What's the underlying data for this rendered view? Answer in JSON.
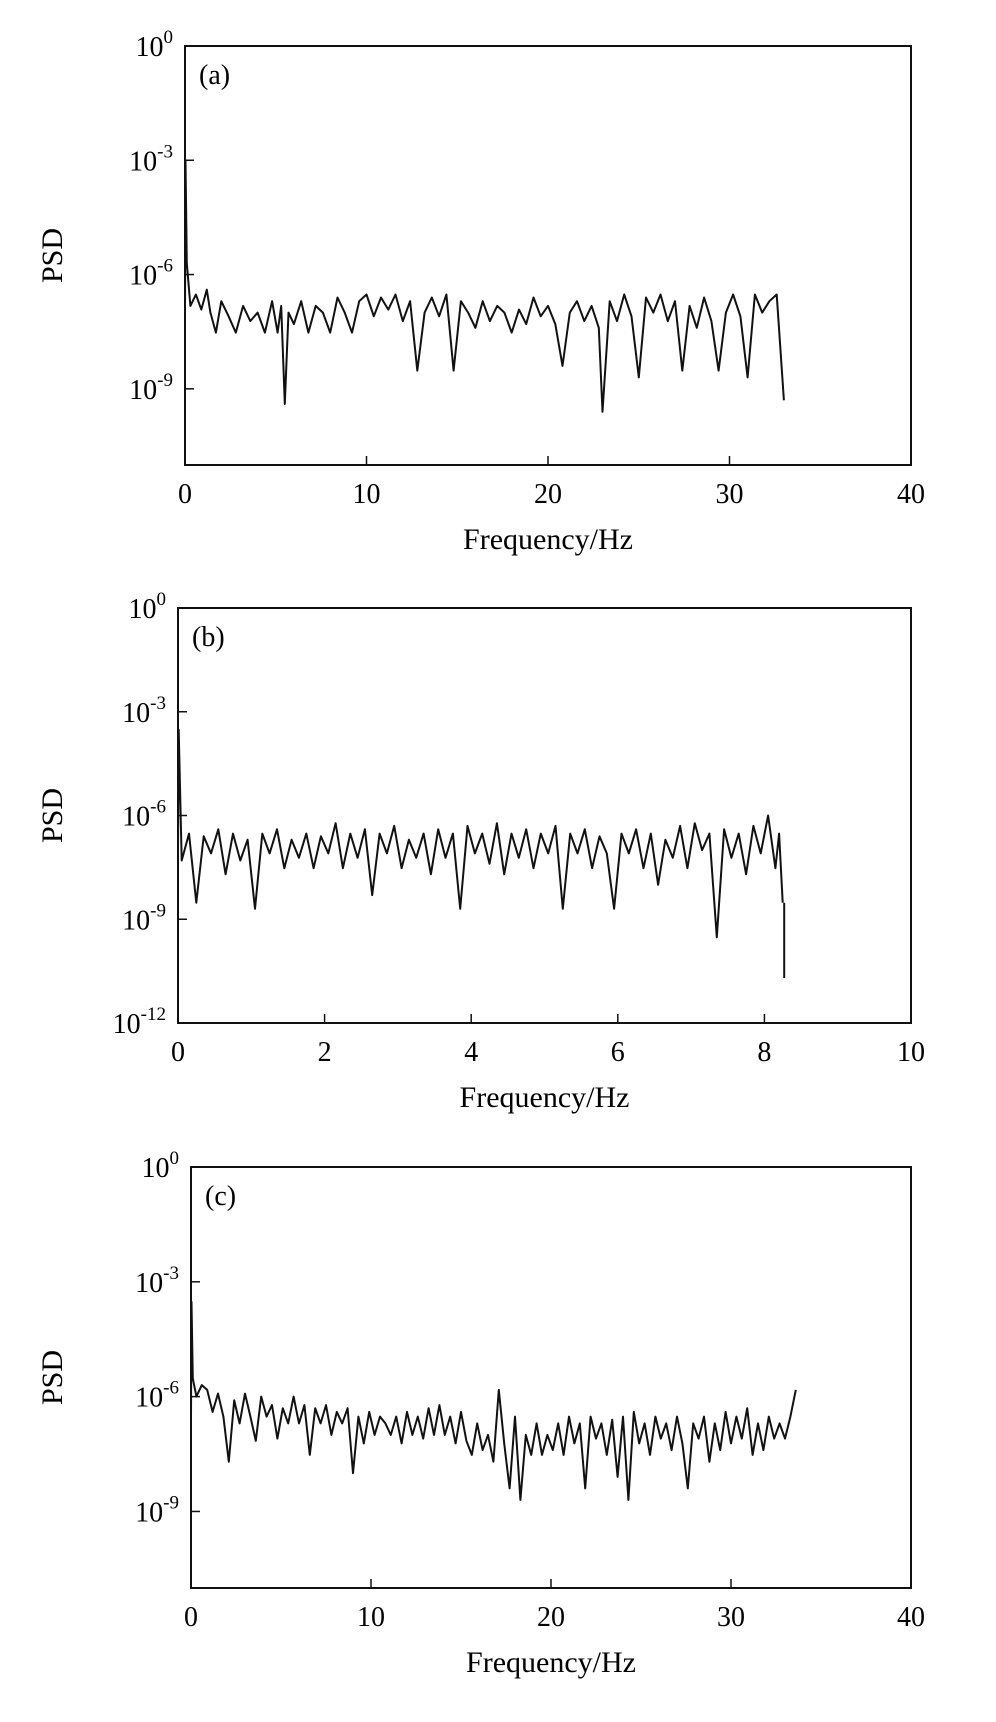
{
  "chart_data": [
    {
      "type": "line",
      "panel_label": "(a)",
      "xlabel": "Frequency/Hz",
      "ylabel": "PSD",
      "xlim": [
        0,
        40
      ],
      "ylim": [
        1e-11,
        1
      ],
      "yscale": "log",
      "xticks": [
        0,
        10,
        20,
        30,
        40
      ],
      "yticks": [
        {
          "base": "10",
          "exp": "0",
          "value": 1
        },
        {
          "base": "10",
          "exp": "-3",
          "value": 0.001
        },
        {
          "base": "10",
          "exp": "-6",
          "value": 1e-06
        },
        {
          "base": "10",
          "exp": "-9",
          "value": 1e-09
        }
      ],
      "series": [
        {
          "x": [
            0,
            0.03,
            0.1,
            0.3,
            0.6,
            0.9,
            1.2,
            1.4,
            1.7,
            2.0,
            2.4,
            2.8,
            3.2,
            3.6,
            4.0,
            4.4,
            4.8,
            5.1,
            5.3,
            5.5,
            5.7,
            6.0,
            6.4,
            6.8,
            7.2,
            7.6,
            8.0,
            8.4,
            8.8,
            9.2,
            9.6,
            10.0,
            10.4,
            10.8,
            11.2,
            11.6,
            12.0,
            12.4,
            12.8,
            13.2,
            13.6,
            14.0,
            14.4,
            14.8,
            15.2,
            15.6,
            16.0,
            16.4,
            16.8,
            17.2,
            17.6,
            18.0,
            18.4,
            18.8,
            19.2,
            19.6,
            20.0,
            20.4,
            20.8,
            21.2,
            21.6,
            22.0,
            22.4,
            22.8,
            23.0,
            23.4,
            23.8,
            24.2,
            24.6,
            25.0,
            25.4,
            25.8,
            26.2,
            26.6,
            27.0,
            27.4,
            27.8,
            28.2,
            28.6,
            29.0,
            29.4,
            29.8,
            30.2,
            30.6,
            31.0,
            31.4,
            31.8,
            32.2,
            32.6,
            33.0
          ],
          "y": [
            1e-07,
            0.001,
            2e-06,
            1.5e-07,
            3e-07,
            1.2e-07,
            4e-07,
            1e-07,
            3e-08,
            2e-07,
            8e-08,
            3e-08,
            1.5e-07,
            6e-08,
            1e-07,
            3e-08,
            2e-07,
            3e-08,
            1.5e-07,
            4e-10,
            1e-07,
            5e-08,
            2e-07,
            3e-08,
            1.5e-07,
            1e-07,
            3e-08,
            2.5e-07,
            1e-07,
            3e-08,
            2e-07,
            3e-07,
            8e-08,
            2.5e-07,
            1.2e-07,
            3e-07,
            6e-08,
            2e-07,
            3e-09,
            1e-07,
            2.5e-07,
            8e-08,
            3e-07,
            3e-09,
            2e-07,
            1e-07,
            4e-08,
            2e-07,
            6e-08,
            1.5e-07,
            1e-07,
            3e-08,
            1.2e-07,
            5e-08,
            2.5e-07,
            8e-08,
            1.5e-07,
            5e-08,
            4e-09,
            1e-07,
            2e-07,
            6e-08,
            1.5e-07,
            4e-08,
            2.5e-10,
            2e-07,
            6e-08,
            3e-07,
            8e-08,
            2e-09,
            2.5e-07,
            1e-07,
            3e-07,
            6e-08,
            2e-07,
            3e-09,
            1.5e-07,
            4e-08,
            2.5e-07,
            6e-08,
            3e-09,
            1e-07,
            3e-07,
            8e-08,
            2e-09,
            3e-07,
            1e-07,
            2e-07,
            3e-07,
            5e-10
          ]
        }
      ]
    },
    {
      "type": "line",
      "panel_label": "(b)",
      "xlabel": "Frequency/Hz",
      "ylabel": "PSD",
      "xlim": [
        0,
        10
      ],
      "ylim": [
        1e-12,
        1
      ],
      "yscale": "log",
      "xticks": [
        0,
        2,
        4,
        6,
        8,
        10
      ],
      "yticks": [
        {
          "base": "10",
          "exp": "0",
          "value": 1
        },
        {
          "base": "10",
          "exp": "-3",
          "value": 0.001
        },
        {
          "base": "10",
          "exp": "-6",
          "value": 1e-06
        },
        {
          "base": "10",
          "exp": "-9",
          "value": 1e-09
        },
        {
          "base": "10",
          "exp": "-12",
          "value": 1e-12
        }
      ],
      "series": [
        {
          "x": [
            0,
            0.01,
            0.05,
            0.15,
            0.25,
            0.35,
            0.45,
            0.55,
            0.65,
            0.75,
            0.85,
            0.95,
            1.05,
            1.15,
            1.25,
            1.35,
            1.45,
            1.55,
            1.65,
            1.75,
            1.85,
            1.95,
            2.05,
            2.15,
            2.25,
            2.35,
            2.45,
            2.55,
            2.65,
            2.75,
            2.85,
            2.95,
            3.05,
            3.15,
            3.25,
            3.35,
            3.45,
            3.55,
            3.65,
            3.75,
            3.85,
            3.95,
            4.05,
            4.15,
            4.25,
            4.35,
            4.45,
            4.55,
            4.65,
            4.75,
            4.85,
            4.95,
            5.05,
            5.15,
            5.25,
            5.35,
            5.45,
            5.55,
            5.65,
            5.75,
            5.85,
            5.95,
            6.05,
            6.15,
            6.25,
            6.35,
            6.45,
            6.55,
            6.65,
            6.75,
            6.85,
            6.95,
            7.05,
            7.15,
            7.25,
            7.35,
            7.45,
            7.55,
            7.65,
            7.75,
            7.85,
            7.95,
            8.05,
            8.15,
            8.2,
            8.25
          ],
          "y": [
            1e-07,
            0.0003,
            5e-08,
            3e-07,
            3e-09,
            2.5e-07,
            8e-08,
            4e-07,
            2e-08,
            3e-07,
            5e-08,
            2e-07,
            2e-09,
            3e-07,
            8e-08,
            4e-07,
            3e-08,
            2e-07,
            6e-08,
            3e-07,
            3e-08,
            2.5e-07,
            8e-08,
            6e-07,
            3e-08,
            3e-07,
            6e-08,
            4e-07,
            5e-09,
            3e-07,
            8e-08,
            5e-07,
            3e-08,
            2e-07,
            6e-08,
            3e-07,
            2e-08,
            4e-07,
            6e-08,
            3e-07,
            2e-09,
            5e-07,
            8e-08,
            3e-07,
            4e-08,
            6e-07,
            2e-08,
            3e-07,
            6e-08,
            4e-07,
            3e-08,
            3e-07,
            8e-08,
            5e-07,
            2e-09,
            3e-07,
            8e-08,
            4e-07,
            3e-08,
            2.5e-07,
            8e-08,
            2e-09,
            3e-07,
            8e-08,
            4e-07,
            3e-08,
            3e-07,
            1e-08,
            2e-07,
            6e-08,
            5e-07,
            3e-08,
            6e-07,
            1e-07,
            3e-07,
            3e-10,
            4e-07,
            6e-08,
            3e-07,
            2e-08,
            5e-07,
            8e-08,
            1e-06,
            3e-08,
            3e-07,
            3e-09
          ]
        },
        {
          "x": [
            8.27,
            8.27
          ],
          "y": [
            3e-09,
            2e-11
          ]
        }
      ]
    },
    {
      "type": "line",
      "panel_label": "(c)",
      "xlabel": "Frequency/Hz",
      "ylabel": "PSD",
      "xlim": [
        0,
        40
      ],
      "ylim": [
        1e-11,
        1
      ],
      "yscale": "log",
      "xticks": [
        0,
        10,
        20,
        30,
        40
      ],
      "yticks": [
        {
          "base": "10",
          "exp": "0",
          "value": 1
        },
        {
          "base": "10",
          "exp": "-3",
          "value": 0.001
        },
        {
          "base": "10",
          "exp": "-6",
          "value": 1e-06
        },
        {
          "base": "10",
          "exp": "-9",
          "value": 1e-09
        }
      ],
      "series": [
        {
          "x": [
            0,
            0.03,
            0.1,
            0.3,
            0.6,
            0.9,
            1.2,
            1.5,
            1.8,
            2.1,
            2.4,
            2.7,
            3.0,
            3.3,
            3.6,
            3.9,
            4.2,
            4.5,
            4.8,
            5.1,
            5.4,
            5.7,
            6.0,
            6.3,
            6.6,
            6.9,
            7.2,
            7.5,
            7.8,
            8.1,
            8.4,
            8.7,
            9.0,
            9.3,
            9.6,
            9.9,
            10.2,
            10.5,
            10.8,
            11.1,
            11.4,
            11.7,
            12.0,
            12.3,
            12.6,
            12.9,
            13.2,
            13.5,
            13.8,
            14.1,
            14.4,
            14.7,
            15.0,
            15.3,
            15.6,
            15.9,
            16.2,
            16.5,
            16.8,
            17.1,
            17.4,
            17.7,
            18.0,
            18.3,
            18.6,
            18.9,
            19.2,
            19.5,
            19.8,
            20.1,
            20.4,
            20.7,
            21.0,
            21.3,
            21.6,
            21.9,
            22.2,
            22.5,
            22.8,
            23.1,
            23.4,
            23.7,
            24.0,
            24.3,
            24.6,
            24.9,
            25.2,
            25.5,
            25.8,
            26.1,
            26.4,
            26.7,
            27.0,
            27.3,
            27.6,
            27.9,
            28.2,
            28.5,
            28.8,
            29.1,
            29.4,
            29.7,
            30.0,
            30.3,
            30.6,
            30.9,
            31.2,
            31.5,
            31.8,
            32.1,
            32.4,
            32.7,
            33.0,
            33.3,
            33.6
          ],
          "y": [
            3e-07,
            0.0003,
            3e-06,
            1e-06,
            2e-06,
            1.5e-06,
            4e-07,
            1.2e-06,
            3e-07,
            2e-08,
            8e-07,
            2e-07,
            1.2e-06,
            3e-07,
            7e-08,
            1e-06,
            3e-07,
            6e-07,
            8e-08,
            5e-07,
            2e-07,
            1e-06,
            2e-07,
            6e-07,
            3e-08,
            5e-07,
            2e-07,
            6e-07,
            1e-07,
            4e-07,
            2e-07,
            5e-07,
            1e-08,
            3e-07,
            6e-08,
            4e-07,
            1e-07,
            3e-07,
            2e-07,
            1e-07,
            3e-07,
            6e-08,
            4e-07,
            1e-07,
            3e-07,
            8e-08,
            5e-07,
            1e-07,
            6e-07,
            1e-07,
            3e-07,
            6e-08,
            4e-07,
            7e-08,
            3e-08,
            2e-07,
            4e-08,
            1e-07,
            2e-08,
            1.5e-06,
            6e-08,
            4e-09,
            3e-07,
            2e-09,
            1e-07,
            3e-08,
            2e-07,
            3e-08,
            1e-07,
            4e-08,
            2e-07,
            3e-08,
            3e-07,
            6e-08,
            2e-07,
            4e-09,
            3e-07,
            8e-08,
            2e-07,
            3e-08,
            2.5e-07,
            8e-09,
            3e-07,
            2e-09,
            4e-07,
            6e-08,
            2e-07,
            3e-08,
            3e-07,
            8e-08,
            2e-07,
            4e-08,
            3e-07,
            6e-08,
            4e-09,
            2e-07,
            8e-08,
            3e-07,
            2e-08,
            2e-07,
            4e-08,
            4e-07,
            6e-08,
            3e-07,
            8e-08,
            5e-07,
            3e-08,
            2e-07,
            4e-08,
            3e-07,
            8e-08,
            2e-07,
            8e-08,
            3e-07,
            1.5e-06
          ]
        }
      ]
    }
  ]
}
